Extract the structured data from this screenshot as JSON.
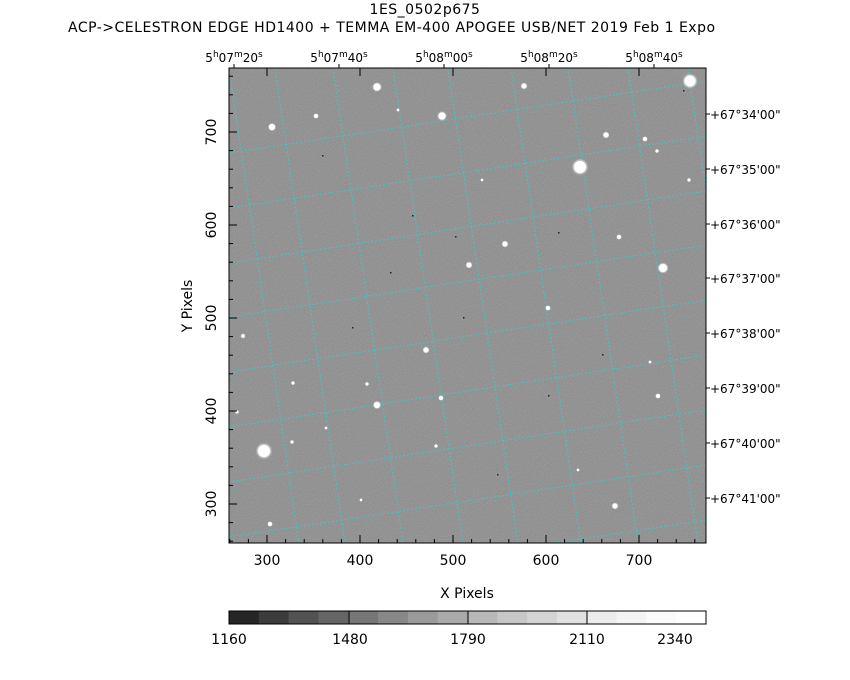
{
  "header": {
    "object_name": "1ES_0502p675",
    "instrument_line": "ACP->CELESTRON EDGE HD1400 + TEMMA EM-400 APOGEE USB/NET   2019 Feb  1    Expo"
  },
  "axes": {
    "xlabel": "X Pixels",
    "ylabel": "Y Pixels",
    "x_ticks": [
      "300",
      "400",
      "500",
      "600",
      "700"
    ],
    "y_ticks": [
      "300",
      "400",
      "500",
      "600",
      "700"
    ]
  },
  "ra_ticks": [
    {
      "h": "5",
      "m": "07",
      "s": "20"
    },
    {
      "h": "5",
      "m": "07",
      "s": "40"
    },
    {
      "h": "5",
      "m": "08",
      "s": "00"
    },
    {
      "h": "5",
      "m": "08",
      "s": "20"
    },
    {
      "h": "5",
      "m": "08",
      "s": "40"
    }
  ],
  "dec_ticks": [
    "+67°34'00\"",
    "+67°35'00\"",
    "+67°36'00\"",
    "+67°37'00\"",
    "+67°38'00\"",
    "+67°39'00\"",
    "+67°40'00\"",
    "+67°41'00\""
  ],
  "colorbar": {
    "labels": [
      "1160",
      "1480",
      "1790",
      "2110",
      "2340"
    ],
    "segment_colors": [
      "#262626",
      "#3c3c3c",
      "#525252",
      "#656565",
      "#767676",
      "#888888",
      "#9a9a9a",
      "#aaaaaa",
      "#b8b8b8",
      "#c7c7c7",
      "#d4d4d4",
      "#e1e1e1",
      "#ececec",
      "#f4f4f4",
      "#fbfbfb",
      "#ffffff"
    ]
  },
  "colors": {
    "background": "#ffffff",
    "image_gray": "#8c8c8c",
    "grid": "#31d0d0",
    "star": "#ffffff"
  }
}
